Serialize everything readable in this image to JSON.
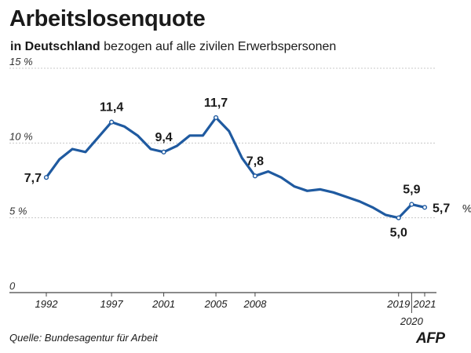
{
  "header": {
    "title": "Arbeitslosenquote",
    "subtitle_strong": "in Deutschland",
    "subtitle_rest": "bezogen auf alle zivilen Erwerbspersonen"
  },
  "footer": {
    "source": "Quelle: Bundesagentur für Arbeit",
    "logo_text": "AFP"
  },
  "colors": {
    "line": "#1f5aa0",
    "grid": "#c8c8c8",
    "axis": "#444444"
  },
  "chart_data": {
    "type": "line",
    "title": "Arbeitslosenquote",
    "subtitle": "in Deutschland bezogen auf alle zivilen Erwerbspersonen",
    "ylim": [
      0,
      15
    ],
    "xlim": [
      1992,
      2021
    ],
    "y_ticks": [
      {
        "value": 15,
        "label": "15 %"
      },
      {
        "value": 10,
        "label": "10 %"
      },
      {
        "value": 5,
        "label": "5 %"
      },
      {
        "value": 0,
        "label": "0"
      }
    ],
    "x_ticks": [
      {
        "value": 1992,
        "label": "1992"
      },
      {
        "value": 1997,
        "label": "1997"
      },
      {
        "value": 2001,
        "label": "2001"
      },
      {
        "value": 2005,
        "label": "2005"
      },
      {
        "value": 2008,
        "label": "2008"
      },
      {
        "value": 2019,
        "label": "2019"
      },
      {
        "value": 2020,
        "label": "2020"
      },
      {
        "value": 2021,
        "label": "2021"
      }
    ],
    "grid": true,
    "unit_label": "%",
    "series": [
      {
        "x": [
          1992,
          1993,
          1994,
          1995,
          1996,
          1997,
          1998,
          1999,
          2000,
          2001,
          2002,
          2003,
          2004,
          2005,
          2006,
          2007,
          2008,
          2009,
          2010,
          2011,
          2012,
          2013,
          2014,
          2015,
          2016,
          2017,
          2018,
          2019,
          2020,
          2020.5,
          2021
        ],
        "y": [
          7.7,
          8.9,
          9.6,
          9.4,
          10.4,
          11.4,
          11.1,
          10.5,
          9.6,
          9.4,
          9.8,
          10.5,
          10.5,
          11.7,
          10.8,
          9.0,
          7.8,
          8.1,
          7.7,
          7.1,
          6.8,
          6.9,
          6.7,
          6.4,
          6.1,
          5.7,
          5.2,
          5.0,
          5.9,
          5.8,
          5.7
        ]
      }
    ],
    "annotations": [
      {
        "x": 1992,
        "y": 7.7,
        "label": "7,7",
        "pos": "left"
      },
      {
        "x": 1997,
        "y": 11.4,
        "label": "11,4",
        "pos": "above"
      },
      {
        "x": 2001,
        "y": 9.4,
        "label": "9,4",
        "pos": "above"
      },
      {
        "x": 2005,
        "y": 11.7,
        "label": "11,7",
        "pos": "above"
      },
      {
        "x": 2008,
        "y": 7.8,
        "label": "7,8",
        "pos": "above"
      },
      {
        "x": 2019,
        "y": 5.0,
        "label": "5,0",
        "pos": "below"
      },
      {
        "x": 2020,
        "y": 5.9,
        "label": "5,9",
        "pos": "above"
      },
      {
        "x": 2021,
        "y": 5.7,
        "label": "5,7",
        "pos": "right"
      }
    ]
  }
}
